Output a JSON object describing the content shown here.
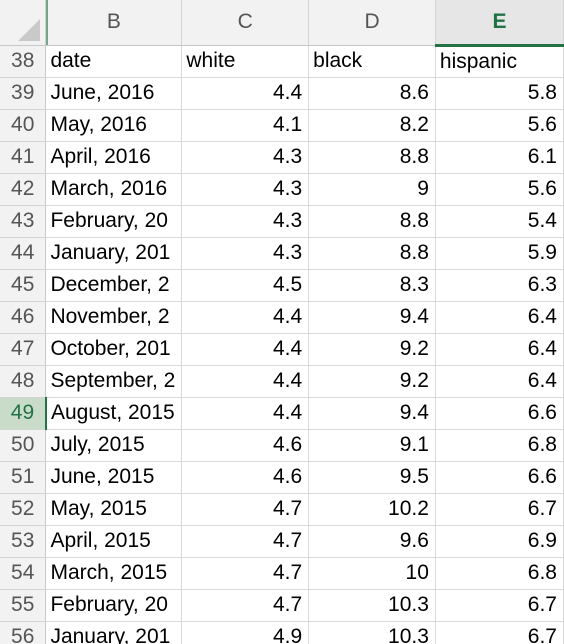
{
  "columns": [
    "B",
    "C",
    "D",
    "E"
  ],
  "selected_column": "E",
  "selected_row": "49",
  "rows": [
    {
      "num": "38",
      "b": "date",
      "c": "white",
      "d": "black",
      "e": "hispanic",
      "header": true
    },
    {
      "num": "39",
      "b": "June, 2016",
      "c": "4.4",
      "d": "8.6",
      "e": "5.8"
    },
    {
      "num": "40",
      "b": "May, 2016",
      "c": "4.1",
      "d": "8.2",
      "e": "5.6"
    },
    {
      "num": "41",
      "b": "April, 2016",
      "c": "4.3",
      "d": "8.8",
      "e": "6.1"
    },
    {
      "num": "42",
      "b": "March, 2016",
      "c": "4.3",
      "d": "9",
      "e": "5.6"
    },
    {
      "num": "43",
      "b": "February, 20",
      "c": "4.3",
      "d": "8.8",
      "e": "5.4"
    },
    {
      "num": "44",
      "b": "January, 201",
      "c": "4.3",
      "d": "8.8",
      "e": "5.9"
    },
    {
      "num": "45",
      "b": "December, 2",
      "c": "4.5",
      "d": "8.3",
      "e": "6.3"
    },
    {
      "num": "46",
      "b": "November, 2",
      "c": "4.4",
      "d": "9.4",
      "e": "6.4"
    },
    {
      "num": "47",
      "b": "October, 201",
      "c": "4.4",
      "d": "9.2",
      "e": "6.4"
    },
    {
      "num": "48",
      "b": "September, 2",
      "c": "4.4",
      "d": "9.2",
      "e": "6.4"
    },
    {
      "num": "49",
      "b": "August, 2015",
      "c": "4.4",
      "d": "9.4",
      "e": "6.6"
    },
    {
      "num": "50",
      "b": "July, 2015",
      "c": "4.6",
      "d": "9.1",
      "e": "6.8"
    },
    {
      "num": "51",
      "b": "June, 2015",
      "c": "4.6",
      "d": "9.5",
      "e": "6.6"
    },
    {
      "num": "52",
      "b": "May, 2015",
      "c": "4.7",
      "d": "10.2",
      "e": "6.7"
    },
    {
      "num": "53",
      "b": "April, 2015",
      "c": "4.7",
      "d": "9.6",
      "e": "6.9"
    },
    {
      "num": "54",
      "b": "March, 2015",
      "c": "4.7",
      "d": "10",
      "e": "6.8"
    },
    {
      "num": "55",
      "b": "February, 20",
      "c": "4.7",
      "d": "10.3",
      "e": "6.7"
    },
    {
      "num": "56",
      "b": "January, 201",
      "c": "4.9",
      "d": "10.3",
      "e": "6.7"
    }
  ]
}
